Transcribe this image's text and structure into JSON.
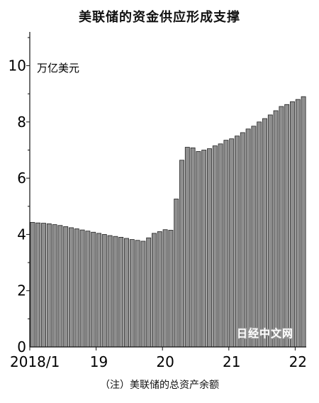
{
  "chart_data": {
    "type": "bar",
    "title": "美联储的资金供应形成支撑",
    "unit_label": "万亿美元",
    "note": "（注）美联储的总资产余额",
    "watermark": "日经中文网",
    "x_tick_labels": [
      "2018/1",
      "19",
      "20",
      "21",
      "22"
    ],
    "y_ticks": [
      0,
      2,
      4,
      6,
      8,
      10
    ],
    "ylim": [
      0,
      11.2
    ],
    "bar_color": "#8f8f8f",
    "grid": false,
    "categories": [
      "2018/1",
      "2018/2",
      "2018/3",
      "2018/4",
      "2018/5",
      "2018/6",
      "2018/7",
      "2018/8",
      "2018/9",
      "2018/10",
      "2018/11",
      "2018/12",
      "2019/1",
      "2019/2",
      "2019/3",
      "2019/4",
      "2019/5",
      "2019/6",
      "2019/7",
      "2019/8",
      "2019/9",
      "2019/10",
      "2019/11",
      "2019/12",
      "2020/1",
      "2020/2",
      "2020/3",
      "2020/4",
      "2020/5",
      "2020/6",
      "2020/7",
      "2020/8",
      "2020/9",
      "2020/10",
      "2020/11",
      "2020/12",
      "2021/1",
      "2021/2",
      "2021/3",
      "2021/4",
      "2021/5",
      "2021/6",
      "2021/7",
      "2021/8",
      "2021/9",
      "2021/10",
      "2021/11",
      "2021/12",
      "2022/1",
      "2022/2"
    ],
    "values": [
      4.43,
      4.41,
      4.4,
      4.38,
      4.35,
      4.32,
      4.28,
      4.24,
      4.2,
      4.16,
      4.12,
      4.08,
      4.04,
      4.0,
      3.96,
      3.93,
      3.9,
      3.86,
      3.82,
      3.79,
      3.76,
      3.88,
      4.04,
      4.1,
      4.17,
      4.15,
      5.26,
      6.64,
      7.1,
      7.08,
      6.95,
      7.0,
      7.05,
      7.15,
      7.22,
      7.35,
      7.4,
      7.5,
      7.62,
      7.75,
      7.85,
      8.0,
      8.12,
      8.25,
      8.4,
      8.55,
      8.62,
      8.72,
      8.8,
      8.9
    ]
  }
}
